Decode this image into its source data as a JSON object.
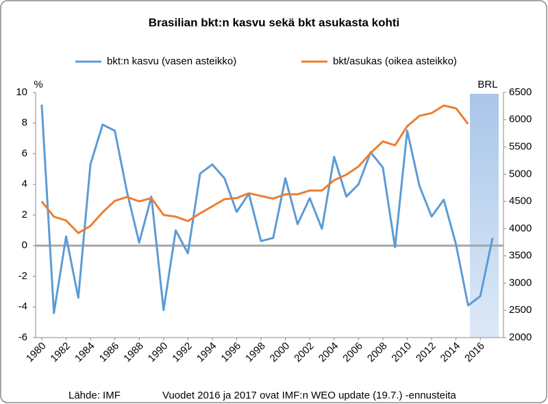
{
  "chart_data": {
    "type": "line",
    "title": "Brasilian bkt:n kasvu sekä bkt asukasta kohti",
    "y_label": "%",
    "y2_label": "BRL",
    "footer_left": "Lähde: IMF",
    "footer_right": "Vuodet 2016 ja 2017 ovat IMF:n WEO update (19.7.) -ennusteita",
    "x": [
      1980,
      1981,
      1982,
      1983,
      1984,
      1985,
      1986,
      1987,
      1988,
      1989,
      1990,
      1991,
      1992,
      1993,
      1994,
      1995,
      1996,
      1997,
      1998,
      1999,
      2000,
      2001,
      2002,
      2003,
      2004,
      2005,
      2006,
      2007,
      2008,
      2009,
      2010,
      2011,
      2012,
      2013,
      2014,
      2015,
      2016,
      2017
    ],
    "xlim": [
      1979.5,
      2017.9
    ],
    "xticks": [
      1980,
      1982,
      1984,
      1986,
      1988,
      1990,
      1992,
      1994,
      1996,
      1998,
      2000,
      2002,
      2004,
      2006,
      2008,
      2010,
      2012,
      2014,
      2016
    ],
    "ylim": [
      -6,
      10
    ],
    "yticks": [
      -6,
      -4,
      -2,
      0,
      2,
      4,
      6,
      8,
      10
    ],
    "y2lim": [
      2000,
      6500
    ],
    "y2ticks": [
      2000,
      2500,
      3000,
      3500,
      4000,
      4500,
      5000,
      5500,
      6000,
      6500
    ],
    "grid": false,
    "series": [
      {
        "name": "bkt:n kasvu  (vasen asteikko)",
        "color": "#5b9bd5",
        "axis": "y",
        "values": [
          9.2,
          -4.4,
          0.6,
          -3.4,
          5.3,
          7.9,
          7.5,
          3.5,
          0.2,
          3.2,
          -4.2,
          1.0,
          -0.5,
          4.7,
          5.3,
          4.4,
          2.2,
          3.4,
          0.3,
          0.5,
          4.4,
          1.4,
          3.1,
          1.1,
          5.8,
          3.2,
          4.0,
          6.1,
          5.1,
          -0.1,
          7.5,
          3.9,
          1.9,
          3.0,
          0.1,
          -3.9,
          -3.3,
          0.5
        ]
      },
      {
        "name": "bkt/asukas (oikea asteikko)",
        "color": "#ed7d31",
        "axis": "y2",
        "values": [
          4500,
          4220,
          4150,
          3920,
          4050,
          4300,
          4510,
          4580,
          4500,
          4560,
          4250,
          4220,
          4140,
          4280,
          4410,
          4540,
          4560,
          4650,
          4600,
          4550,
          4630,
          4630,
          4700,
          4700,
          4890,
          4990,
          5140,
          5390,
          5600,
          5530,
          5880,
          6070,
          6120,
          6260,
          6210,
          5920,
          null,
          null
        ]
      }
    ]
  }
}
